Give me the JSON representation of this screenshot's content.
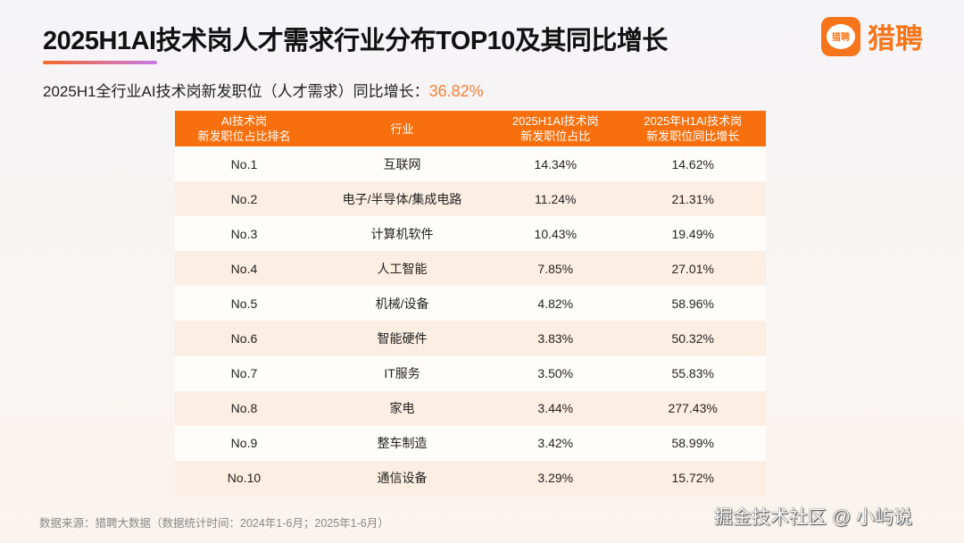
{
  "title": "2025H1AI技术岗人才需求行业分布TOP10及其同比增长",
  "logo": {
    "badge": "猎聘",
    "text": "猎聘"
  },
  "subtitle": {
    "label": "2025H1全行业AI技术岗新发职位（人才需求）同比增长：",
    "value": "36.82%"
  },
  "table": {
    "headers": [
      [
        "AI技术岗",
        "新发职位占比排名"
      ],
      [
        "行业",
        ""
      ],
      [
        "2025H1AI技术岗",
        "新发职位占比"
      ],
      [
        "2025年H1AI技术岗",
        "新发职位同比增长"
      ]
    ],
    "rows": [
      [
        "No.1",
        "互联网",
        "14.34%",
        "14.62%"
      ],
      [
        "No.2",
        "电子/半导体/集成电路",
        "11.24%",
        "21.31%"
      ],
      [
        "No.3",
        "计算机软件",
        "10.43%",
        "19.49%"
      ],
      [
        "No.4",
        "人工智能",
        "7.85%",
        "27.01%"
      ],
      [
        "No.5",
        "机械/设备",
        "4.82%",
        "58.96%"
      ],
      [
        "No.6",
        "智能硬件",
        "3.83%",
        "50.32%"
      ],
      [
        "No.7",
        "IT服务",
        "3.50%",
        "55.83%"
      ],
      [
        "No.8",
        "家电",
        "3.44%",
        "277.43%"
      ],
      [
        "No.9",
        "整车制造",
        "3.42%",
        "58.99%"
      ],
      [
        "No.10",
        "通信设备",
        "3.29%",
        "15.72%"
      ]
    ]
  },
  "source": "数据来源：猎聘大数据（数据统计时间：2024年1-6月；2025年1-6月）",
  "watermark": "掘金技术社区 @ 小屿说",
  "colors": {
    "accent": "#f8700e",
    "alt_row": "#fdeee3"
  }
}
